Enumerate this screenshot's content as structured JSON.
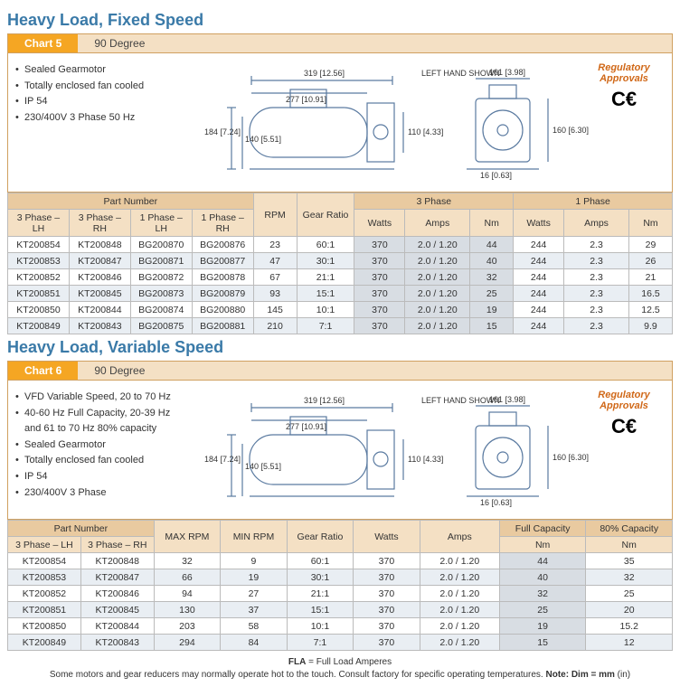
{
  "section1": {
    "title": "Heavy Load, Fixed Speed",
    "chart_label": "Chart 5",
    "chart_sub": "90 Degree",
    "bullets": [
      "Sealed Gearmotor",
      "Totally enclosed fan cooled",
      "IP 54",
      "230/400V 3 Phase 50 Hz"
    ],
    "reg_title": "Regulatory Approvals",
    "diagram": {
      "left_hand": "LEFT HAND SHOWN",
      "d319": "319 [12.56]",
      "d277": "277 [10.91]",
      "d184": "184\n[7.24]",
      "d140": "140\n[5.51]",
      "d110": "110\n[4.33]",
      "d101": "101\n[3.98]",
      "d160": "160\n[6.30]",
      "d16": "16 [0.63]"
    },
    "headers": {
      "part_number": "Part Number",
      "phase3": "3 Phase",
      "phase1": "1 Phase",
      "lh3": "3 Phase – LH",
      "rh3": "3 Phase – RH",
      "lh1": "1 Phase – LH",
      "rh1": "1 Phase – RH",
      "rpm": "RPM",
      "gear": "Gear Ratio",
      "watts": "Watts",
      "amps": "Amps",
      "nm": "Nm"
    },
    "rows": [
      {
        "lh3": "KT200854",
        "rh3": "KT200848",
        "lh1": "BG200870",
        "rh1": "BG200876",
        "rpm": "23",
        "gear": "60:1",
        "w3": "370",
        "a3": "2.0 / 1.20",
        "nm3": "44",
        "w1": "244",
        "a1": "2.3",
        "nm1": "29"
      },
      {
        "lh3": "KT200853",
        "rh3": "KT200847",
        "lh1": "BG200871",
        "rh1": "BG200877",
        "rpm": "47",
        "gear": "30:1",
        "w3": "370",
        "a3": "2.0 / 1.20",
        "nm3": "40",
        "w1": "244",
        "a1": "2.3",
        "nm1": "26"
      },
      {
        "lh3": "KT200852",
        "rh3": "KT200846",
        "lh1": "BG200872",
        "rh1": "BG200878",
        "rpm": "67",
        "gear": "21:1",
        "w3": "370",
        "a3": "2.0 / 1.20",
        "nm3": "32",
        "w1": "244",
        "a1": "2.3",
        "nm1": "21"
      },
      {
        "lh3": "KT200851",
        "rh3": "KT200845",
        "lh1": "BG200873",
        "rh1": "BG200879",
        "rpm": "93",
        "gear": "15:1",
        "w3": "370",
        "a3": "2.0 / 1.20",
        "nm3": "25",
        "w1": "244",
        "a1": "2.3",
        "nm1": "16.5"
      },
      {
        "lh3": "KT200850",
        "rh3": "KT200844",
        "lh1": "BG200874",
        "rh1": "BG200880",
        "rpm": "145",
        "gear": "10:1",
        "w3": "370",
        "a3": "2.0 / 1.20",
        "nm3": "19",
        "w1": "244",
        "a1": "2.3",
        "nm1": "12.5"
      },
      {
        "lh3": "KT200849",
        "rh3": "KT200843",
        "lh1": "BG200875",
        "rh1": "BG200881",
        "rpm": "210",
        "gear": "7:1",
        "w3": "370",
        "a3": "2.0 / 1.20",
        "nm3": "15",
        "w1": "244",
        "a1": "2.3",
        "nm1": "9.9"
      }
    ]
  },
  "section2": {
    "title": "Heavy Load, Variable Speed",
    "chart_label": "Chart 6",
    "chart_sub": "90 Degree",
    "bullets": [
      "VFD Variable Speed, 20 to 70 Hz",
      "40-60 Hz Full Capacity, 20-39 Hz and 61 to 70 Hz 80% capacity",
      "Sealed Gearmotor",
      "Totally enclosed fan cooled",
      "IP 54",
      "230/400V 3 Phase"
    ],
    "reg_title": "Regulatory Approvals",
    "headers": {
      "part_number": "Part Number",
      "lh3": "3 Phase – LH",
      "rh3": "3 Phase – RH",
      "maxrpm": "MAX RPM",
      "minrpm": "MIN RPM",
      "gear": "Gear Ratio",
      "watts": "Watts",
      "amps": "Amps",
      "full": "Full Capacity",
      "eighty": "80% Capacity",
      "nm": "Nm"
    },
    "rows": [
      {
        "lh3": "KT200854",
        "rh3": "KT200848",
        "max": "32",
        "min": "9",
        "gear": "60:1",
        "w": "370",
        "a": "2.0 / 1.20",
        "nmF": "44",
        "nm8": "35"
      },
      {
        "lh3": "KT200853",
        "rh3": "KT200847",
        "max": "66",
        "min": "19",
        "gear": "30:1",
        "w": "370",
        "a": "2.0 / 1.20",
        "nmF": "40",
        "nm8": "32"
      },
      {
        "lh3": "KT200852",
        "rh3": "KT200846",
        "max": "94",
        "min": "27",
        "gear": "21:1",
        "w": "370",
        "a": "2.0 / 1.20",
        "nmF": "32",
        "nm8": "25"
      },
      {
        "lh3": "KT200851",
        "rh3": "KT200845",
        "max": "130",
        "min": "37",
        "gear": "15:1",
        "w": "370",
        "a": "2.0 / 1.20",
        "nmF": "25",
        "nm8": "20"
      },
      {
        "lh3": "KT200850",
        "rh3": "KT200844",
        "max": "203",
        "min": "58",
        "gear": "10:1",
        "w": "370",
        "a": "2.0 / 1.20",
        "nmF": "19",
        "nm8": "15.2"
      },
      {
        "lh3": "KT200849",
        "rh3": "KT200843",
        "max": "294",
        "min": "84",
        "gear": "7:1",
        "w": "370",
        "a": "2.0 / 1.20",
        "nmF": "15",
        "nm8": "12"
      }
    ]
  },
  "footer": {
    "fla": "FLA",
    "fla_def": " = Full Load Amperes",
    "note_text": "Some motors and gear reducers may normally operate hot to the touch.  Consult factory for specific operating temperatures.  ",
    "note_label": "Note: Dim = mm",
    "note_suffix": " (in)"
  }
}
